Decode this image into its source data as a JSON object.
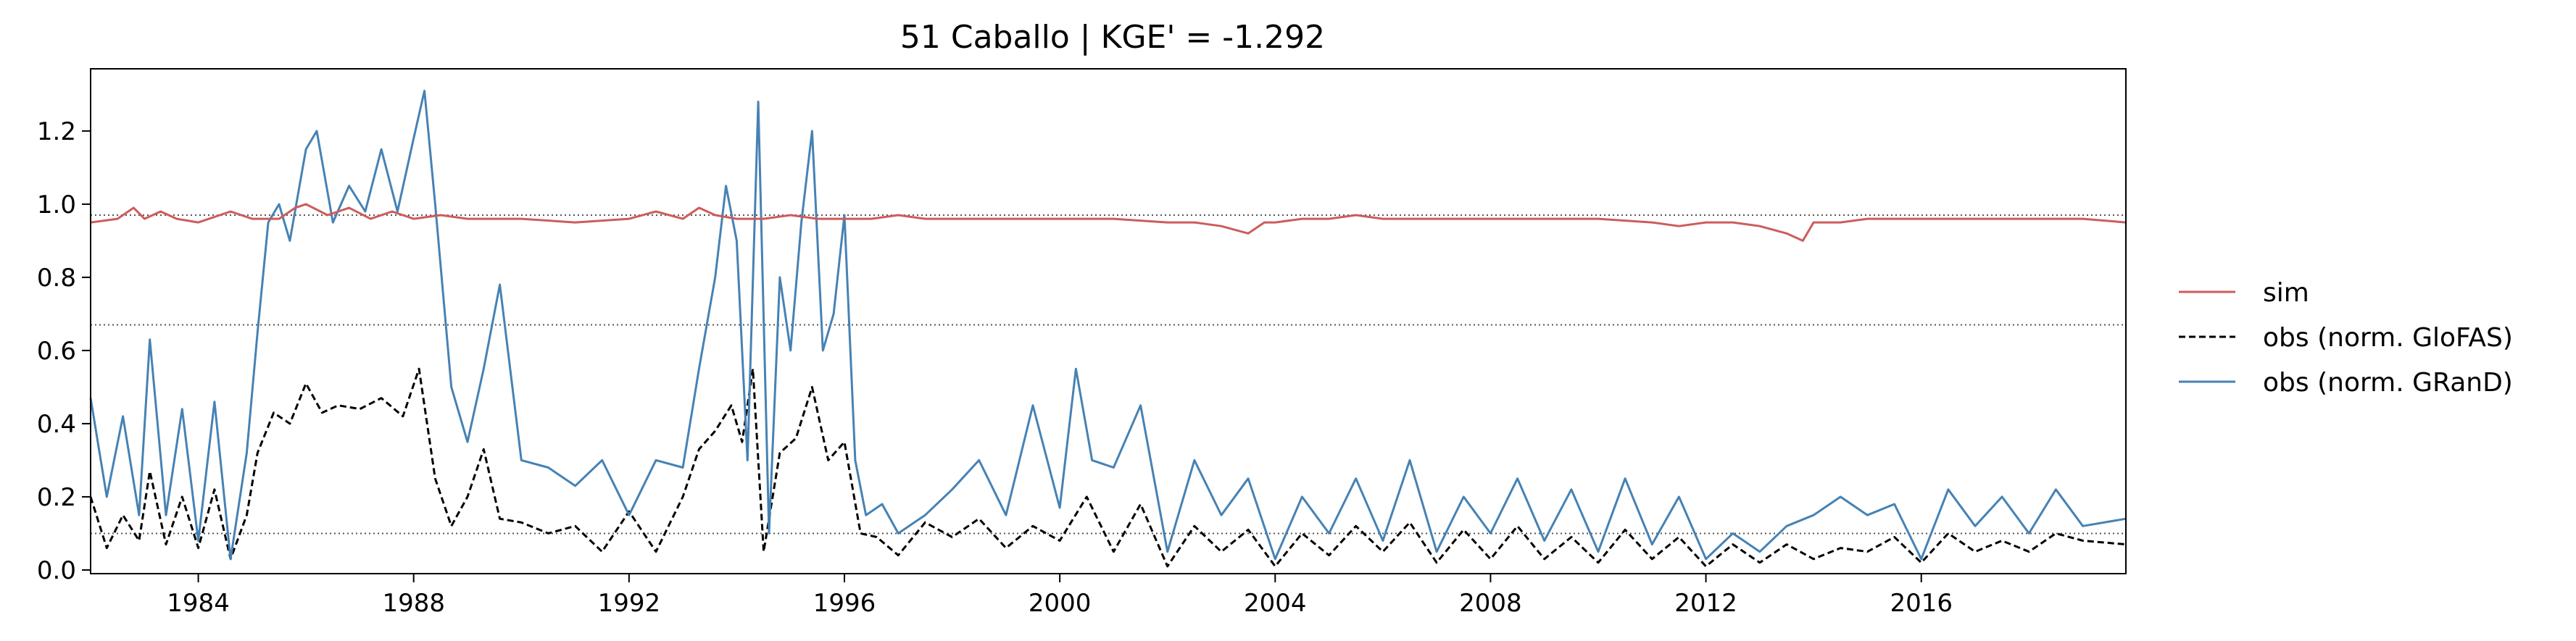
{
  "chart_data": {
    "type": "line",
    "title": "51  Caballo | KGE' = -1.292",
    "xlim": [
      1982.0,
      2019.8
    ],
    "ylim": [
      -0.01,
      1.37
    ],
    "x_ticks": [
      1984,
      1988,
      1992,
      1996,
      2000,
      2004,
      2008,
      2012,
      2016
    ],
    "y_ticks": [
      0.0,
      0.2,
      0.4,
      0.6,
      0.8,
      1.0,
      1.2
    ],
    "y_tick_labels": [
      "0.0",
      "0.2",
      "0.4",
      "0.6",
      "0.8",
      "1.0",
      "1.2"
    ],
    "grid": false,
    "legend_position": "right-outside",
    "reference_lines": [
      {
        "y": 0.97,
        "style": "dotted"
      },
      {
        "y": 0.67,
        "style": "dotted"
      },
      {
        "y": 0.1,
        "style": "dotted"
      }
    ],
    "colors": {
      "sim": "#cd5c5c",
      "obs_glofas": "#000000",
      "obs_grand": "#4682b4",
      "ref": "#555555"
    },
    "series": [
      {
        "name": "sim",
        "style": "solid",
        "x": [
          1982.0,
          1982.5,
          1982.8,
          1983.0,
          1983.3,
          1983.6,
          1984.0,
          1984.6,
          1985.0,
          1985.5,
          1985.8,
          1986.0,
          1986.4,
          1986.8,
          1987.2,
          1987.6,
          1988.0,
          1988.5,
          1989.0,
          1989.5,
          1990.0,
          1991.0,
          1992.0,
          1992.5,
          1993.0,
          1993.3,
          1993.6,
          1994.0,
          1994.5,
          1995.0,
          1995.5,
          1996.0,
          1996.5,
          1997.0,
          1997.5,
          1998.0,
          1999.0,
          2000.0,
          2001.0,
          2002.0,
          2002.5,
          2003.0,
          2003.5,
          2003.8,
          2004.0,
          2004.5,
          2005.0,
          2005.5,
          2006.0,
          2007.0,
          2008.0,
          2009.0,
          2010.0,
          2011.0,
          2011.5,
          2012.0,
          2012.5,
          2013.0,
          2013.5,
          2013.8,
          2014.0,
          2014.5,
          2015.0,
          2016.0,
          2017.0,
          2018.0,
          2019.0,
          2019.8
        ],
        "y": [
          0.95,
          0.96,
          0.99,
          0.96,
          0.98,
          0.96,
          0.95,
          0.98,
          0.96,
          0.96,
          0.99,
          1.0,
          0.97,
          0.99,
          0.96,
          0.98,
          0.96,
          0.97,
          0.96,
          0.96,
          0.96,
          0.95,
          0.96,
          0.98,
          0.96,
          0.99,
          0.97,
          0.96,
          0.96,
          0.97,
          0.96,
          0.96,
          0.96,
          0.97,
          0.96,
          0.96,
          0.96,
          0.96,
          0.96,
          0.95,
          0.95,
          0.94,
          0.92,
          0.95,
          0.95,
          0.96,
          0.96,
          0.97,
          0.96,
          0.96,
          0.96,
          0.96,
          0.96,
          0.95,
          0.94,
          0.95,
          0.95,
          0.94,
          0.92,
          0.9,
          0.95,
          0.95,
          0.96,
          0.96,
          0.96,
          0.96,
          0.96,
          0.95
        ]
      },
      {
        "name": "obs (norm. GloFAS)",
        "style": "dashed",
        "x": [
          1982.0,
          1982.3,
          1982.6,
          1982.9,
          1983.1,
          1983.4,
          1983.7,
          1984.0,
          1984.3,
          1984.6,
          1984.9,
          1985.1,
          1985.4,
          1985.7,
          1986.0,
          1986.3,
          1986.6,
          1987.0,
          1987.4,
          1987.8,
          1988.1,
          1988.4,
          1988.7,
          1989.0,
          1989.3,
          1989.6,
          1990.0,
          1990.5,
          1991.0,
          1991.5,
          1992.0,
          1992.5,
          1993.0,
          1993.3,
          1993.6,
          1993.9,
          1994.1,
          1994.3,
          1994.5,
          1994.8,
          1995.1,
          1995.4,
          1995.7,
          1996.0,
          1996.3,
          1996.6,
          1997.0,
          1997.5,
          1998.0,
          1998.5,
          1999.0,
          1999.5,
          2000.0,
          2000.5,
          2001.0,
          2001.5,
          2002.0,
          2002.5,
          2003.0,
          2003.5,
          2004.0,
          2004.5,
          2005.0,
          2005.5,
          2006.0,
          2006.5,
          2007.0,
          2007.5,
          2008.0,
          2008.5,
          2009.0,
          2009.5,
          2010.0,
          2010.5,
          2011.0,
          2011.5,
          2012.0,
          2012.5,
          2013.0,
          2013.5,
          2014.0,
          2014.5,
          2015.0,
          2015.5,
          2016.0,
          2016.5,
          2017.0,
          2017.5,
          2018.0,
          2018.5,
          2019.0,
          2019.8
        ],
        "y": [
          0.2,
          0.06,
          0.15,
          0.08,
          0.27,
          0.07,
          0.2,
          0.06,
          0.22,
          0.03,
          0.15,
          0.32,
          0.43,
          0.4,
          0.51,
          0.43,
          0.45,
          0.44,
          0.47,
          0.42,
          0.55,
          0.25,
          0.12,
          0.2,
          0.33,
          0.14,
          0.13,
          0.1,
          0.12,
          0.05,
          0.16,
          0.05,
          0.2,
          0.33,
          0.38,
          0.45,
          0.35,
          0.55,
          0.05,
          0.32,
          0.36,
          0.5,
          0.3,
          0.35,
          0.1,
          0.09,
          0.04,
          0.13,
          0.09,
          0.14,
          0.06,
          0.12,
          0.08,
          0.2,
          0.05,
          0.18,
          0.01,
          0.12,
          0.05,
          0.11,
          0.01,
          0.1,
          0.04,
          0.12,
          0.05,
          0.13,
          0.02,
          0.11,
          0.03,
          0.12,
          0.03,
          0.09,
          0.02,
          0.11,
          0.03,
          0.09,
          0.01,
          0.07,
          0.02,
          0.07,
          0.03,
          0.06,
          0.05,
          0.09,
          0.02,
          0.1,
          0.05,
          0.08,
          0.05,
          0.1,
          0.08,
          0.07
        ]
      },
      {
        "name": "obs (norm. GRanD)",
        "style": "solid",
        "x": [
          1982.0,
          1982.3,
          1982.6,
          1982.9,
          1983.1,
          1983.4,
          1983.7,
          1984.0,
          1984.3,
          1984.6,
          1984.9,
          1985.1,
          1985.3,
          1985.5,
          1985.7,
          1986.0,
          1986.2,
          1986.5,
          1986.8,
          1987.1,
          1987.4,
          1987.7,
          1988.0,
          1988.2,
          1988.4,
          1988.7,
          1989.0,
          1989.3,
          1989.6,
          1990.0,
          1990.5,
          1991.0,
          1991.5,
          1992.0,
          1992.5,
          1993.0,
          1993.3,
          1993.6,
          1993.8,
          1994.0,
          1994.2,
          1994.4,
          1994.6,
          1994.8,
          1995.0,
          1995.2,
          1995.4,
          1995.6,
          1995.8,
          1996.0,
          1996.2,
          1996.4,
          1996.7,
          1997.0,
          1997.5,
          1998.0,
          1998.5,
          1999.0,
          1999.5,
          2000.0,
          2000.3,
          2000.6,
          2001.0,
          2001.5,
          2002.0,
          2002.5,
          2003.0,
          2003.5,
          2004.0,
          2004.5,
          2005.0,
          2005.5,
          2006.0,
          2006.5,
          2007.0,
          2007.5,
          2008.0,
          2008.5,
          2009.0,
          2009.5,
          2010.0,
          2010.5,
          2011.0,
          2011.5,
          2012.0,
          2012.5,
          2013.0,
          2013.5,
          2014.0,
          2014.5,
          2015.0,
          2015.5,
          2016.0,
          2016.5,
          2017.0,
          2017.5,
          2018.0,
          2018.5,
          2019.0,
          2019.8
        ],
        "y": [
          0.47,
          0.2,
          0.42,
          0.15,
          0.63,
          0.15,
          0.44,
          0.08,
          0.46,
          0.03,
          0.32,
          0.65,
          0.95,
          1.0,
          0.9,
          1.15,
          1.2,
          0.95,
          1.05,
          0.98,
          1.15,
          0.98,
          1.18,
          1.31,
          1.0,
          0.5,
          0.35,
          0.55,
          0.78,
          0.3,
          0.28,
          0.23,
          0.3,
          0.15,
          0.3,
          0.28,
          0.55,
          0.8,
          1.05,
          0.9,
          0.3,
          1.28,
          0.1,
          0.8,
          0.6,
          0.95,
          1.2,
          0.6,
          0.7,
          0.97,
          0.3,
          0.15,
          0.18,
          0.1,
          0.15,
          0.22,
          0.3,
          0.15,
          0.45,
          0.17,
          0.55,
          0.3,
          0.28,
          0.45,
          0.05,
          0.3,
          0.15,
          0.25,
          0.03,
          0.2,
          0.1,
          0.25,
          0.08,
          0.3,
          0.05,
          0.2,
          0.1,
          0.25,
          0.08,
          0.22,
          0.05,
          0.25,
          0.07,
          0.2,
          0.03,
          0.1,
          0.05,
          0.12,
          0.15,
          0.2,
          0.15,
          0.18,
          0.03,
          0.22,
          0.12,
          0.2,
          0.1,
          0.22,
          0.12,
          0.14
        ]
      }
    ]
  }
}
